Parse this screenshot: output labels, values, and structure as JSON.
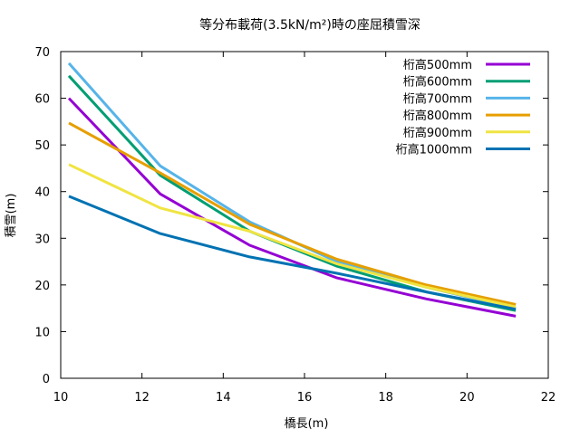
{
  "chart_data": {
    "type": "line",
    "title": "等分布載荷(3.5kN/m²)時の座屈積雪深",
    "xlabel": "橋長(m)",
    "ylabel": "積雪(m)",
    "xlim": [
      10,
      22
    ],
    "ylim": [
      0,
      70
    ],
    "xticks": [
      10,
      12,
      14,
      16,
      18,
      20,
      22
    ],
    "yticks": [
      0,
      10,
      20,
      30,
      40,
      50,
      60,
      70
    ],
    "grid": false,
    "legend_position": "top-right",
    "series": [
      {
        "name": "桁高500mm",
        "color": "#9400d3",
        "x": [
          10.2,
          12.45,
          14.65,
          16.8,
          19.0,
          21.2
        ],
        "y": [
          60.0,
          39.5,
          28.5,
          21.5,
          17.0,
          13.3
        ]
      },
      {
        "name": "桁高600mm",
        "color": "#009e73",
        "x": [
          10.2,
          12.45,
          14.65,
          16.8,
          19.0,
          21.2
        ],
        "y": [
          64.8,
          43.5,
          31.5,
          24.0,
          18.5,
          14.5
        ]
      },
      {
        "name": "桁高700mm",
        "color": "#56b4e9",
        "x": [
          10.2,
          12.45,
          14.65,
          16.8,
          19.0,
          21.2
        ],
        "y": [
          67.5,
          45.5,
          33.5,
          25.0,
          19.5,
          15.0
        ]
      },
      {
        "name": "桁高800mm",
        "color": "#e69f00",
        "x": [
          10.2,
          12.45,
          14.65,
          16.8,
          19.0,
          21.2
        ],
        "y": [
          54.7,
          44.0,
          33.0,
          25.5,
          20.0,
          15.8
        ]
      },
      {
        "name": "桁高900mm",
        "color": "#f0e442",
        "x": [
          10.2,
          12.45,
          14.65,
          16.8,
          19.0,
          21.2
        ],
        "y": [
          45.8,
          36.5,
          31.5,
          24.5,
          19.5,
          15.3
        ]
      },
      {
        "name": "桁高1000mm",
        "color": "#0072b2",
        "x": [
          10.2,
          12.45,
          14.65,
          16.8,
          19.0,
          21.2
        ],
        "y": [
          39.0,
          31.0,
          26.0,
          22.5,
          18.5,
          14.8
        ]
      }
    ]
  }
}
